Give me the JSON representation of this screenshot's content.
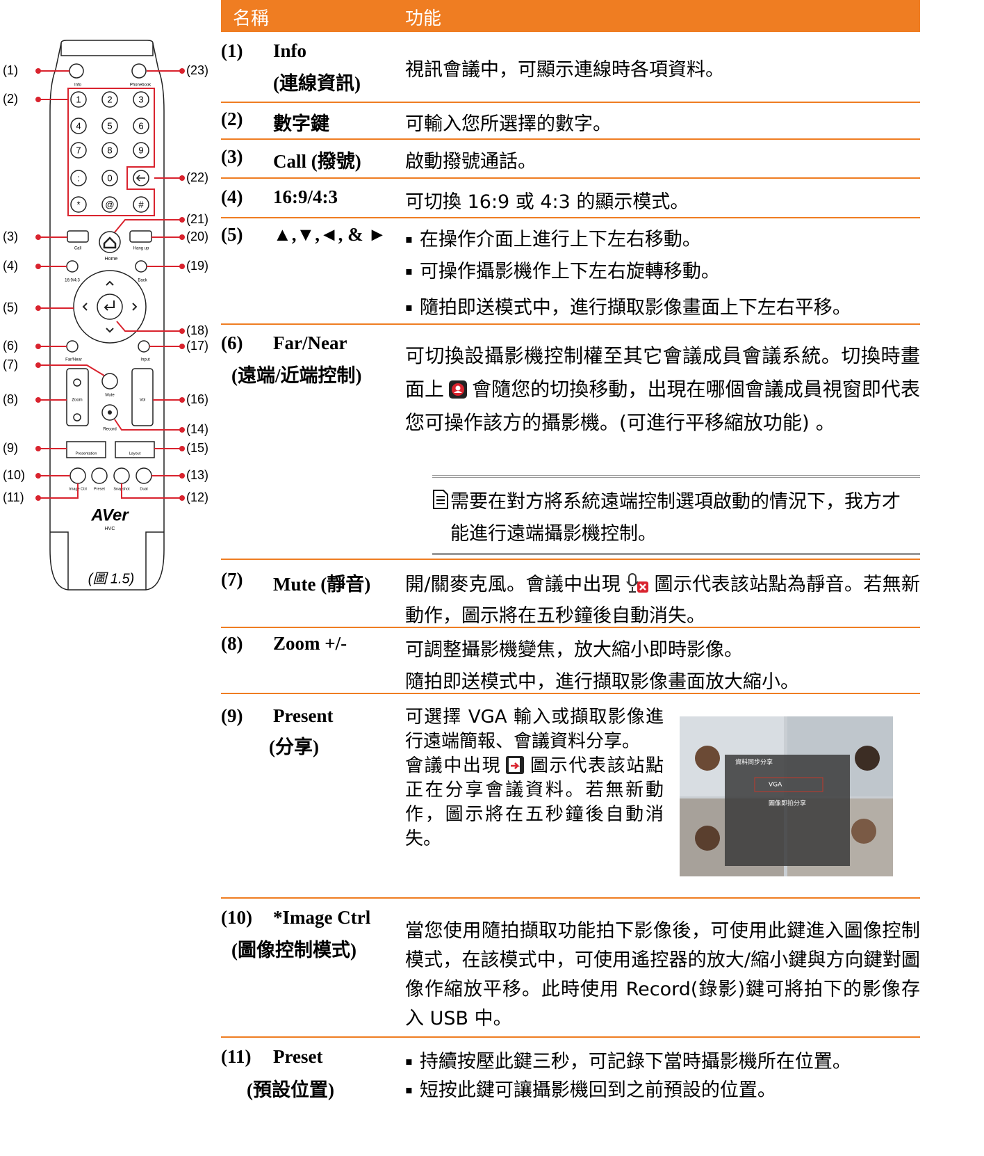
{
  "figure": {
    "callouts": [
      "(1)",
      "(2)",
      "(3)",
      "(4)",
      "(5)",
      "(6)",
      "(7)",
      "(8)",
      "(9)",
      "(10)",
      "(11)",
      "(12)",
      "(13)",
      "(14)",
      "(15)",
      "(16)",
      "(17)",
      "(18)",
      "(19)",
      "(20)",
      "(21)",
      "(22)",
      "(23)"
    ],
    "buttons": {
      "info": "Info",
      "phonebook": "Phonebook",
      "call": "Call",
      "home": "Home",
      "hang_up": "Hang up",
      "aspect": "16:9/4:3",
      "back": "Back",
      "far_near": "Far/Near",
      "input": "Input",
      "mute": "Mute",
      "zoom": "Zoom",
      "vol": "Vol",
      "record": "Record",
      "presentation": "Presentation",
      "layout": "Layout",
      "image_ctrl": "Image Ctrl",
      "preset": "Preset",
      "snapshot": "Snapshot",
      "dual": "Dual"
    },
    "keypad": [
      "1",
      "2",
      "3",
      "4",
      "5",
      "6",
      "7",
      "8",
      "9",
      ":",
      "0",
      "*",
      "@",
      "#"
    ],
    "brand": "AVer",
    "model": "HVC",
    "caption": "(圖 1.5)"
  },
  "table": {
    "headers": [
      "名稱",
      "功能"
    ],
    "rows": [
      {
        "number": "(1)",
        "name": [
          "Info",
          "(連線資訊)"
        ],
        "function": [
          "視訊會議中，可顯示連線時各項資料。"
        ]
      },
      {
        "number": "(2)",
        "name": [
          "數字鍵"
        ],
        "function": [
          "可輸入您所選擇的數字。"
        ]
      },
      {
        "number": "(3)",
        "name": [
          "Call (撥號)"
        ],
        "function": [
          "啟動撥號通話。"
        ]
      },
      {
        "number": "(4)",
        "name": [
          "16:9/4:3"
        ],
        "function": [
          "可切換 16:9 或 4:3 的顯示模式。"
        ]
      },
      {
        "number": "(5)",
        "name": [
          "▲,▼,◄, & ►"
        ],
        "bullets": [
          "在操作介面上進行上下左右移動。",
          "可操作攝影機作上下左右旋轉移動。",
          "隨拍即送模式中，進行擷取影像畫面上下左右平移。"
        ]
      },
      {
        "number": "(6)",
        "name": [
          "Far/Near",
          "(遠端/近端控制)"
        ],
        "function": [
          "可切換設攝影機控制權至其它會議成員會議系統。切換時畫面上",
          "會隨您的切換移動，出現在哪個會議成員視窗即代表您可操作該方的攝影機。(可進行平移縮放功能) 。"
        ],
        "note": "需要在對方將系統遠端控制選項啟動的情況下，我方才能進行遠端攝影機控制。"
      },
      {
        "number": "(7)",
        "name": [
          "Mute (靜音)"
        ],
        "function": [
          "開/關麥克風。會議中出現",
          "圖示代表該站點為靜音。若無新動作，圖示將在五秒鐘後自動消失。"
        ]
      },
      {
        "number": "(8)",
        "name": [
          "Zoom +/-"
        ],
        "function": [
          "可調整攝影機變焦，放大縮小即時影像。",
          "隨拍即送模式中，進行擷取影像畫面放大縮小。"
        ]
      },
      {
        "number": "(9)",
        "name": [
          "Present",
          "(分享)"
        ],
        "function": [
          "可選擇 VGA 輸入或擷取影像進行遠端簡報、會議資料分享。",
          "會議中出現",
          "圖示代表該站點正在分享會議資料。若無新動作，圖示將在五秒鐘後自動消失。"
        ],
        "screenshot": {
          "title": "資料同步分享",
          "items": [
            "VGA",
            "圖像即拍分享"
          ]
        }
      },
      {
        "number": "(10)",
        "name": [
          "*Image Ctrl",
          "(圖像控制模式)"
        ],
        "function": [
          "當您使用隨拍擷取功能拍下影像後，可使用此鍵進入圖像控制模式，在該模式中，可使用遙控器的放大/縮小鍵與方向鍵對圖像作縮放平移。此時使用 Record(錄影)鍵可將拍下的影像存入 USB 中。"
        ]
      },
      {
        "number": "(11)",
        "name": [
          "Preset",
          "(預設位置)"
        ],
        "bullets": [
          "持續按壓此鍵三秒，可記錄下當時攝影機所在位置。",
          "短按此鍵可讓攝影機回到之前預設的位置。"
        ]
      }
    ]
  }
}
